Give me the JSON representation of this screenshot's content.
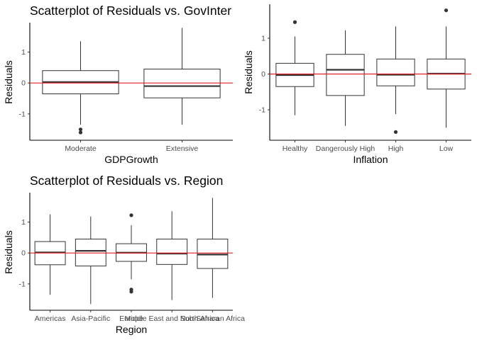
{
  "chart_data": [
    {
      "type": "boxplot",
      "title": "Scatterplot of Residuals vs. GovInter",
      "xlabel": "GDPGrowth",
      "ylabel": "Residuals",
      "ylim": [
        -1.85,
        1.95
      ],
      "yticks": [
        -1,
        0,
        1
      ],
      "reference_line": 0,
      "reference_color": "#e01e1e",
      "categories": [
        "Moderate",
        "Extensive"
      ],
      "boxes": [
        {
          "name": "Moderate",
          "low": -1.35,
          "q1": -0.35,
          "median": 0.03,
          "q3": 0.4,
          "high": 1.35,
          "outliers": [
            -1.5,
            -1.6
          ]
        },
        {
          "name": "Extensive",
          "low": -1.35,
          "q1": -0.48,
          "median": -0.1,
          "q3": 0.45,
          "high": 1.78,
          "outliers": []
        }
      ]
    },
    {
      "type": "boxplot",
      "title": "",
      "xlabel": "Inflation",
      "ylabel": "Residuals",
      "ylim": [
        -1.85,
        1.95
      ],
      "yticks": [
        -1,
        0,
        1
      ],
      "reference_line": 0,
      "reference_color": "#e01e1e",
      "categories": [
        "Healthy",
        "Dangerously High",
        "High",
        "Low"
      ],
      "boxes": [
        {
          "name": "Healthy",
          "low": -1.15,
          "q1": -0.35,
          "median": -0.03,
          "q3": 0.3,
          "high": 1.05,
          "outliers": [
            1.45
          ]
        },
        {
          "name": "Dangerously High",
          "low": -1.45,
          "q1": -0.6,
          "median": 0.12,
          "q3": 0.55,
          "high": 1.22,
          "outliers": []
        },
        {
          "name": "High",
          "low": -1.12,
          "q1": -0.33,
          "median": -0.02,
          "q3": 0.42,
          "high": 1.33,
          "outliers": [
            -1.62
          ]
        },
        {
          "name": "Low",
          "low": -1.5,
          "q1": -0.42,
          "median": 0.01,
          "q3": 0.42,
          "high": 1.33,
          "outliers": [
            1.78
          ]
        }
      ]
    },
    {
      "type": "boxplot",
      "title": "Scatterplot of Residuals vs. Region",
      "xlabel": "Region",
      "ylabel": "Residuals",
      "ylim": [
        -1.85,
        1.95
      ],
      "yticks": [
        -1,
        0,
        1
      ],
      "reference_line": 0,
      "reference_color": "#e01e1e",
      "categories": [
        "Americas",
        "Asia-Pacific",
        "Europe",
        "Middle East and North Africa",
        "Sub-Saharan Africa"
      ],
      "boxes": [
        {
          "name": "Americas",
          "low": -1.35,
          "q1": -0.38,
          "median": 0.02,
          "q3": 0.37,
          "high": 1.25,
          "outliers": []
        },
        {
          "name": "Asia-Pacific",
          "low": -1.65,
          "q1": -0.42,
          "median": 0.07,
          "q3": 0.45,
          "high": 1.18,
          "outliers": []
        },
        {
          "name": "Europe",
          "low": -0.85,
          "q1": -0.27,
          "median": 0.01,
          "q3": 0.3,
          "high": 0.9,
          "outliers": [
            1.22,
            -1.18,
            -1.25
          ]
        },
        {
          "name": "Middle East and North Africa",
          "low": -1.52,
          "q1": -0.37,
          "median": -0.02,
          "q3": 0.45,
          "high": 1.35,
          "outliers": []
        },
        {
          "name": "Sub-Saharan Africa",
          "low": -1.45,
          "q1": -0.5,
          "median": -0.05,
          "q3": 0.45,
          "high": 1.78,
          "outliers": []
        }
      ]
    }
  ]
}
